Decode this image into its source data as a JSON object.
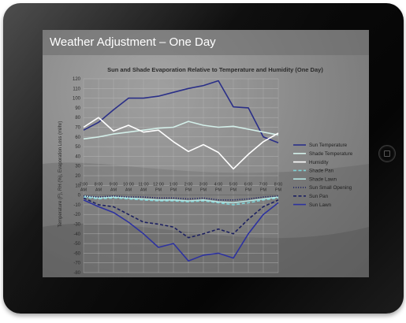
{
  "screen": {
    "title": "Weather Adjustment – One Day"
  },
  "chart_data": {
    "type": "line",
    "title": "Sun and Shade Evaporation Relative to Temperature and Humidity (One Day)",
    "ylabel": "Temperature (F), RH (%), Evaporation Loss (ml/hr)",
    "xlabel": "",
    "ylim": [
      -80,
      120
    ],
    "yticks": [
      -80,
      -70,
      -60,
      -50,
      -40,
      -30,
      -20,
      -10,
      0,
      10,
      20,
      30,
      40,
      50,
      60,
      70,
      80,
      90,
      100,
      110,
      120
    ],
    "categories": [
      [
        "7:00",
        "AM"
      ],
      [
        "8:00",
        "AM"
      ],
      [
        "9:00",
        "AM"
      ],
      [
        "10:00",
        "AM"
      ],
      [
        "11:00",
        "AM"
      ],
      [
        "12:00",
        "PM"
      ],
      [
        "1:00",
        "PM"
      ],
      [
        "2:00",
        "PM"
      ],
      [
        "3:00",
        "PM"
      ],
      [
        "4:00",
        "PM"
      ],
      [
        "5:00",
        "PM"
      ],
      [
        "6:00",
        "PM"
      ],
      [
        "7:00",
        "PM"
      ],
      [
        "8:00",
        "PM"
      ]
    ],
    "grid": true,
    "legend_position": "right",
    "series": [
      {
        "name": "Sun Temperature",
        "color": "#2a2f88",
        "dash": "solid",
        "values": [
          67,
          75,
          88,
          100,
          100,
          102,
          106,
          110,
          113,
          118,
          91,
          90,
          60,
          54
        ]
      },
      {
        "name": "Shade Temperature",
        "color": "#d3efe9",
        "dash": "solid",
        "values": [
          58,
          60,
          63,
          65,
          67,
          69,
          70,
          76,
          72,
          70,
          71,
          68,
          65,
          62
        ]
      },
      {
        "name": "Humidity",
        "color": "#ffffff",
        "dash": "solid",
        "values": [
          70,
          80,
          66,
          72,
          65,
          67,
          55,
          45,
          52,
          44,
          27,
          42,
          55,
          64
        ]
      },
      {
        "name": "Shade Pan",
        "color": "#7fd2d6",
        "dash": "dashed",
        "values": [
          -2,
          -4,
          -3,
          -4,
          -5,
          -6,
          -6,
          -7,
          -6,
          -8,
          -10,
          -8,
          -5,
          -3
        ]
      },
      {
        "name": "Shade Lawn",
        "color": "#b5e6e3",
        "dash": "solid",
        "values": [
          -1,
          -3,
          -2,
          -3,
          -4,
          -5,
          -5,
          -6,
          -5,
          -7,
          -8,
          -6,
          -4,
          -2
        ]
      },
      {
        "name": "Sun Small Opening",
        "color": "#1c2060",
        "dash": "dotted",
        "values": [
          -1,
          -2,
          -1,
          -2,
          -2,
          -3,
          -3,
          -4,
          -3,
          -5,
          -5,
          -4,
          -2,
          -1
        ]
      },
      {
        "name": "Sun Pan",
        "color": "#1c2060",
        "dash": "dashed",
        "values": [
          -3,
          -10,
          -12,
          -20,
          -28,
          -30,
          -33,
          -44,
          -40,
          -35,
          -40,
          -25,
          -12,
          -5
        ]
      },
      {
        "name": "Sun Lawn",
        "color": "#2d32a0",
        "dash": "solid",
        "values": [
          -5,
          -12,
          -18,
          -28,
          -40,
          -54,
          -50,
          -68,
          -62,
          -60,
          -65,
          -40,
          -20,
          -8
        ]
      }
    ]
  }
}
